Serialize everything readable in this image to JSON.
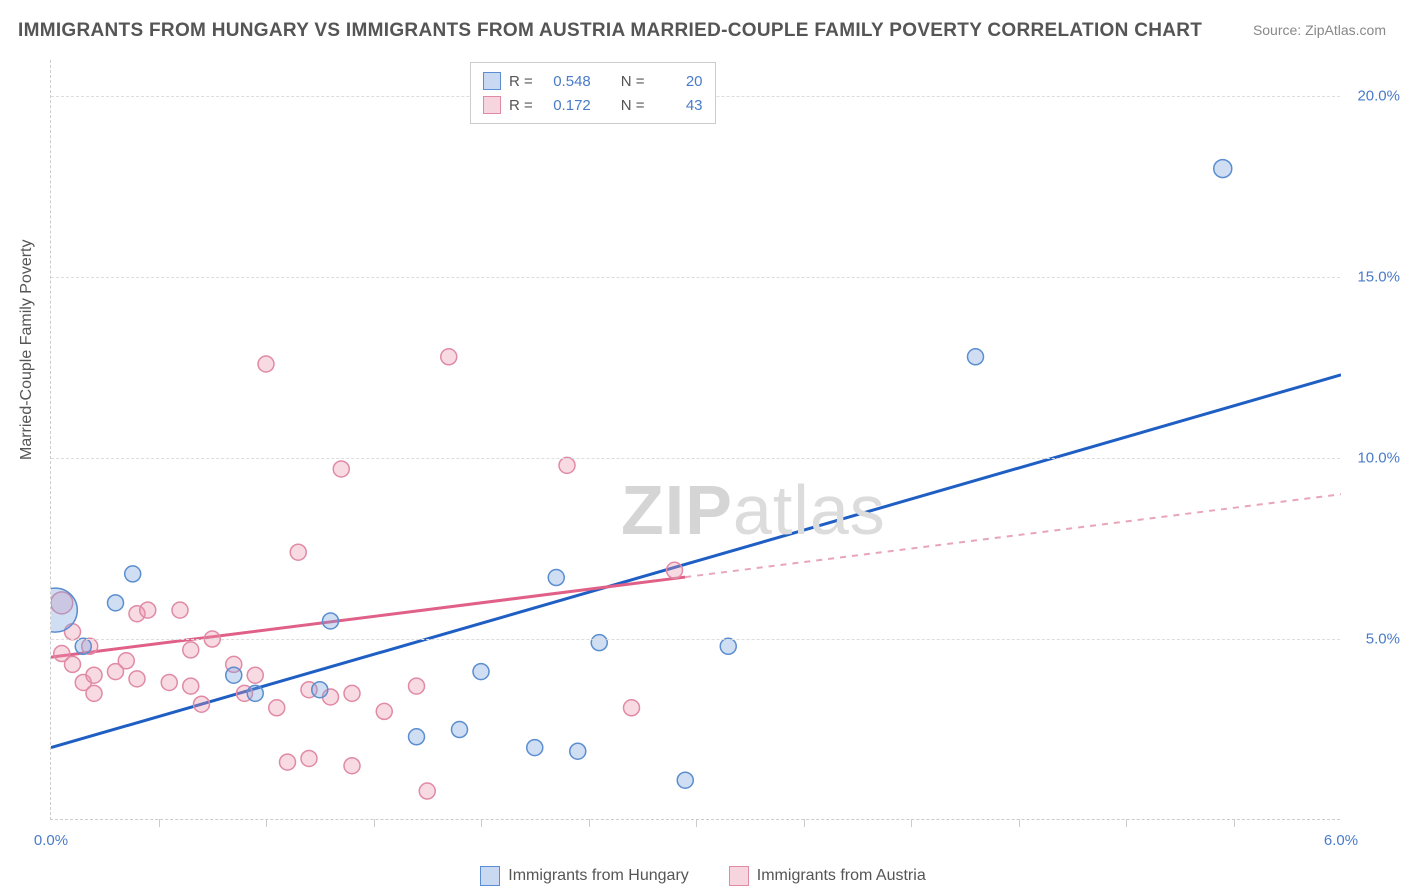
{
  "title": "IMMIGRANTS FROM HUNGARY VS IMMIGRANTS FROM AUSTRIA MARRIED-COUPLE FAMILY POVERTY CORRELATION CHART",
  "source": "Source: ZipAtlas.com",
  "ylabel": "Married-Couple Family Poverty",
  "watermark_bold": "ZIP",
  "watermark_thin": "atlas",
  "chart": {
    "type": "scatter-correlation",
    "background_color": "#ffffff",
    "grid_color": "#dddddd",
    "xlim": [
      0.0,
      6.0
    ],
    "ylim": [
      0.0,
      21.0
    ],
    "xticks_major": [
      0.0,
      6.0
    ],
    "xticks_major_labels": [
      "0.0%",
      "6.0%"
    ],
    "xticks_minor": [
      0.5,
      1.0,
      1.5,
      2.0,
      2.5,
      3.0,
      3.5,
      4.0,
      4.5,
      5.0,
      5.5
    ],
    "yticks": [
      5.0,
      10.0,
      15.0,
      20.0
    ],
    "ytick_labels": [
      "5.0%",
      "10.0%",
      "15.0%",
      "20.0%"
    ],
    "tick_color": "#4a7bc8",
    "tick_fontsize": 15,
    "series": [
      {
        "name": "Immigrants from Hungary",
        "color_fill": "rgba(120,160,220,0.35)",
        "color_stroke": "#5a8ed0",
        "trend_color": "#1f5fc4",
        "trend_dash_color": "#1f5fc4",
        "trend": {
          "x1": 0.0,
          "y1": 2.0,
          "x2": 6.0,
          "y2": 12.3,
          "solid_until_x": 6.0
        },
        "R": "0.548",
        "N": "20",
        "points": [
          {
            "x": 0.02,
            "y": 5.8,
            "r": 22
          },
          {
            "x": 0.15,
            "y": 4.8,
            "r": 8
          },
          {
            "x": 0.3,
            "y": 6.0,
            "r": 8
          },
          {
            "x": 0.38,
            "y": 6.8,
            "r": 8
          },
          {
            "x": 0.85,
            "y": 4.0,
            "r": 8
          },
          {
            "x": 0.95,
            "y": 3.5,
            "r": 8
          },
          {
            "x": 1.25,
            "y": 3.6,
            "r": 8
          },
          {
            "x": 1.3,
            "y": 5.5,
            "r": 8
          },
          {
            "x": 1.7,
            "y": 2.3,
            "r": 8
          },
          {
            "x": 1.9,
            "y": 2.5,
            "r": 8
          },
          {
            "x": 2.0,
            "y": 4.1,
            "r": 8
          },
          {
            "x": 2.25,
            "y": 2.0,
            "r": 8
          },
          {
            "x": 2.35,
            "y": 6.7,
            "r": 8
          },
          {
            "x": 2.45,
            "y": 1.9,
            "r": 8
          },
          {
            "x": 2.55,
            "y": 4.9,
            "r": 8
          },
          {
            "x": 2.95,
            "y": 1.1,
            "r": 8
          },
          {
            "x": 3.15,
            "y": 4.8,
            "r": 8
          },
          {
            "x": 4.3,
            "y": 12.8,
            "r": 8
          },
          {
            "x": 5.45,
            "y": 18.0,
            "r": 9
          }
        ]
      },
      {
        "name": "Immigrants from Austria",
        "color_fill": "rgba(235,150,175,0.35)",
        "color_stroke": "#e08aa5",
        "trend_color": "#e06088",
        "trend_dash_color": "#e8a5b8",
        "trend": {
          "x1": 0.0,
          "y1": 4.5,
          "x2": 6.0,
          "y2": 9.0,
          "solid_until_x": 2.95
        },
        "R": "0.172",
        "N": "43",
        "points": [
          {
            "x": 0.05,
            "y": 6.0,
            "r": 11
          },
          {
            "x": 0.05,
            "y": 4.6,
            "r": 8
          },
          {
            "x": 0.1,
            "y": 5.2,
            "r": 8
          },
          {
            "x": 0.1,
            "y": 4.3,
            "r": 8
          },
          {
            "x": 0.15,
            "y": 3.8,
            "r": 8
          },
          {
            "x": 0.18,
            "y": 4.8,
            "r": 8
          },
          {
            "x": 0.2,
            "y": 4.0,
            "r": 8
          },
          {
            "x": 0.2,
            "y": 3.5,
            "r": 8
          },
          {
            "x": 0.3,
            "y": 4.1,
            "r": 8
          },
          {
            "x": 0.35,
            "y": 4.4,
            "r": 8
          },
          {
            "x": 0.4,
            "y": 3.9,
            "r": 8
          },
          {
            "x": 0.4,
            "y": 5.7,
            "r": 8
          },
          {
            "x": 0.45,
            "y": 5.8,
            "r": 8
          },
          {
            "x": 0.55,
            "y": 3.8,
            "r": 8
          },
          {
            "x": 0.6,
            "y": 5.8,
            "r": 8
          },
          {
            "x": 0.65,
            "y": 3.7,
            "r": 8
          },
          {
            "x": 0.65,
            "y": 4.7,
            "r": 8
          },
          {
            "x": 0.7,
            "y": 3.2,
            "r": 8
          },
          {
            "x": 0.75,
            "y": 5.0,
            "r": 8
          },
          {
            "x": 0.85,
            "y": 4.3,
            "r": 8
          },
          {
            "x": 0.9,
            "y": 3.5,
            "r": 8
          },
          {
            "x": 0.95,
            "y": 4.0,
            "r": 8
          },
          {
            "x": 1.0,
            "y": 12.6,
            "r": 8
          },
          {
            "x": 1.05,
            "y": 3.1,
            "r": 8
          },
          {
            "x": 1.1,
            "y": 1.6,
            "r": 8
          },
          {
            "x": 1.15,
            "y": 7.4,
            "r": 8
          },
          {
            "x": 1.2,
            "y": 3.6,
            "r": 8
          },
          {
            "x": 1.2,
            "y": 1.7,
            "r": 8
          },
          {
            "x": 1.3,
            "y": 3.4,
            "r": 8
          },
          {
            "x": 1.35,
            "y": 9.7,
            "r": 8
          },
          {
            "x": 1.4,
            "y": 3.5,
            "r": 8
          },
          {
            "x": 1.4,
            "y": 1.5,
            "r": 8
          },
          {
            "x": 1.55,
            "y": 3.0,
            "r": 8
          },
          {
            "x": 1.7,
            "y": 3.7,
            "r": 8
          },
          {
            "x": 1.75,
            "y": 0.8,
            "r": 8
          },
          {
            "x": 1.85,
            "y": 12.8,
            "r": 8
          },
          {
            "x": 2.4,
            "y": 9.8,
            "r": 8
          },
          {
            "x": 2.7,
            "y": 3.1,
            "r": 8
          },
          {
            "x": 2.9,
            "y": 6.9,
            "r": 8
          }
        ]
      }
    ],
    "legend_labels": {
      "R": "R =",
      "N": "N ="
    }
  },
  "bottom_legend": {
    "hungary": "Immigrants from Hungary",
    "austria": "Immigrants from Austria"
  }
}
